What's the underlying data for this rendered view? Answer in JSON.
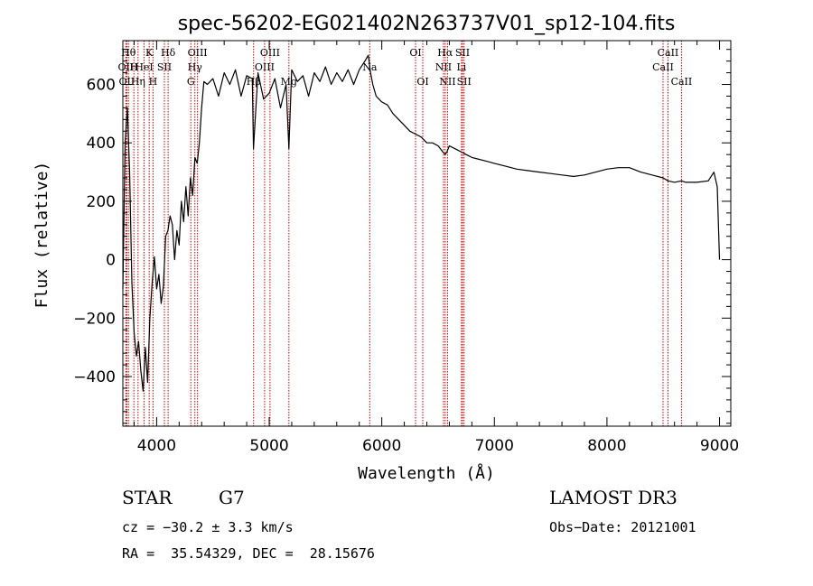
{
  "chart_data": {
    "type": "line",
    "title": "spec-56202-EG021402N263737V01_sp12-104.fits",
    "xlabel": "Wavelength (Å)",
    "ylabel": "Flux (relative)",
    "xlim": [
      3700,
      9100
    ],
    "ylim": [
      -570,
      750
    ],
    "xticks": [
      4000,
      5000,
      6000,
      7000,
      8000,
      9000
    ],
    "yticks": [
      -400,
      -200,
      0,
      200,
      400,
      600
    ],
    "series": [
      {
        "name": "flux",
        "x": [
          3700,
          3720,
          3740,
          3760,
          3780,
          3800,
          3820,
          3840,
          3860,
          3880,
          3900,
          3920,
          3940,
          3960,
          3980,
          4000,
          4020,
          4040,
          4060,
          4080,
          4100,
          4120,
          4140,
          4160,
          4180,
          4200,
          4220,
          4240,
          4260,
          4280,
          4300,
          4320,
          4340,
          4360,
          4380,
          4400,
          4420,
          4450,
          4500,
          4550,
          4600,
          4650,
          4700,
          4750,
          4800,
          4850,
          4860,
          4900,
          4950,
          5000,
          5050,
          5100,
          5150,
          5175,
          5200,
          5250,
          5300,
          5350,
          5400,
          5450,
          5500,
          5550,
          5600,
          5650,
          5700,
          5750,
          5800,
          5850,
          5880,
          5900,
          5920,
          5950,
          6000,
          6050,
          6100,
          6150,
          6200,
          6250,
          6300,
          6350,
          6400,
          6450,
          6500,
          6540,
          6563,
          6580,
          6600,
          6650,
          6700,
          6750,
          6800,
          6850,
          6900,
          6950,
          7000,
          7100,
          7200,
          7300,
          7400,
          7500,
          7600,
          7700,
          7800,
          7900,
          8000,
          8100,
          8200,
          8300,
          8400,
          8498,
          8542,
          8600,
          8662,
          8700,
          8800,
          8900,
          8950,
          8980,
          9000
        ],
        "values": [
          -100,
          400,
          520,
          300,
          -80,
          -250,
          -330,
          -280,
          -380,
          -450,
          -300,
          -420,
          -200,
          -80,
          10,
          -100,
          -50,
          -150,
          -90,
          80,
          100,
          150,
          120,
          0,
          100,
          50,
          200,
          130,
          250,
          150,
          280,
          220,
          350,
          330,
          400,
          520,
          610,
          600,
          620,
          560,
          640,
          600,
          650,
          560,
          630,
          620,
          380,
          640,
          550,
          570,
          620,
          520,
          600,
          380,
          650,
          610,
          630,
          560,
          640,
          610,
          660,
          600,
          640,
          610,
          650,
          600,
          650,
          680,
          700,
          640,
          600,
          560,
          540,
          530,
          500,
          480,
          460,
          440,
          430,
          420,
          400,
          400,
          390,
          370,
          360,
          370,
          390,
          380,
          370,
          360,
          350,
          345,
          340,
          335,
          330,
          320,
          310,
          305,
          300,
          295,
          290,
          285,
          290,
          300,
          310,
          315,
          315,
          300,
          290,
          280,
          270,
          265,
          270,
          265,
          265,
          270,
          300,
          250,
          0
        ]
      }
    ],
    "spectral_lines": [
      {
        "wl": 3750,
        "label": "Hθ",
        "row": 1
      },
      {
        "wl": 3727,
        "label": "OII",
        "row": 2
      },
      {
        "wl": 3735,
        "label": "OII",
        "row": 3
      },
      {
        "wl": 3798,
        "label": "H",
        "row": 2
      },
      {
        "wl": 3835,
        "label": "Hη",
        "row": 3
      },
      {
        "wl": 3889,
        "label": "HeI",
        "row": 2
      },
      {
        "wl": 3934,
        "label": "K",
        "row": 1
      },
      {
        "wl": 3968,
        "label": "H",
        "row": 3
      },
      {
        "wl": 4069,
        "label": "SII",
        "row": 2
      },
      {
        "wl": 4102,
        "label": "Hδ",
        "row": 1
      },
      {
        "wl": 4304,
        "label": "G",
        "row": 3
      },
      {
        "wl": 4340,
        "label": "Hγ",
        "row": 2
      },
      {
        "wl": 4363,
        "label": "OIII",
        "row": 1
      },
      {
        "wl": 4861,
        "label": "Hβ",
        "row": 3
      },
      {
        "wl": 4959,
        "label": "OIII",
        "row": 2
      },
      {
        "wl": 5007,
        "label": "OIII",
        "row": 1
      },
      {
        "wl": 5175,
        "label": "Mg",
        "row": 3
      },
      {
        "wl": 5893,
        "label": "Na",
        "row": 2
      },
      {
        "wl": 6300,
        "label": "OI",
        "row": 1
      },
      {
        "wl": 6364,
        "label": "OI",
        "row": 3
      },
      {
        "wl": 6548,
        "label": "NII",
        "row": 2
      },
      {
        "wl": 6563,
        "label": "Hα",
        "row": 1
      },
      {
        "wl": 6584,
        "label": "NII",
        "row": 3
      },
      {
        "wl": 6708,
        "label": "Li",
        "row": 2
      },
      {
        "wl": 6717,
        "label": "SII",
        "row": 1
      },
      {
        "wl": 6731,
        "label": "SII",
        "row": 3
      },
      {
        "wl": 8498,
        "label": "CaII",
        "row": 2
      },
      {
        "wl": 8542,
        "label": "CaII",
        "row": 1
      },
      {
        "wl": 8662,
        "label": "CaII",
        "row": 3
      }
    ],
    "line_color": "#000000",
    "marker_color": "#cc0000"
  },
  "info": {
    "object_type": "STAR",
    "subclass": "G7",
    "survey": "LAMOST DR3",
    "cz": "cz = −30.2 ± 3.3 km/s",
    "obs_date": "Obs−Date: 20121001",
    "radec": "RA =  35.54329, DEC =  28.15676"
  }
}
